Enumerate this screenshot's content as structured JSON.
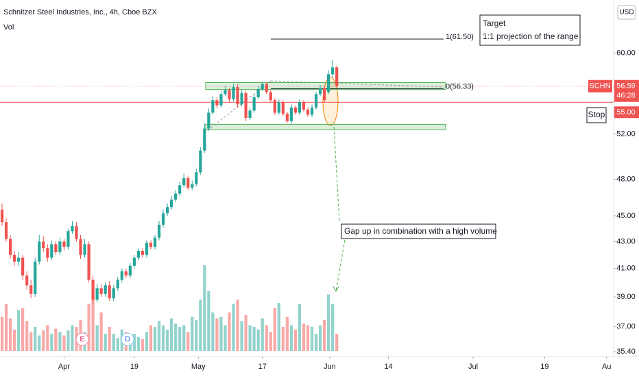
{
  "header": {
    "title": "Schnitzer Steel Industries, Inc., 4h, Cboe BZX",
    "volume_label": "Vol",
    "currency": "USD"
  },
  "chart_data": {
    "type": "candlestick",
    "log_scale": true,
    "up_color": "#26a69a",
    "down_color": "#ef5350",
    "open": [
      45.5,
      44.5,
      43.2,
      42.0,
      41.5,
      41.8,
      40.5,
      39.8,
      39.2,
      41.5,
      43.0,
      42.5,
      41.8,
      42.8,
      42.2,
      43.0,
      42.6,
      43.8,
      44.2,
      43.2,
      42.0,
      42.8,
      40.2,
      38.8,
      39.6,
      39.2,
      39.8,
      38.9,
      39.6,
      40.2,
      40.8,
      40.5,
      41.2,
      41.8,
      42.3,
      42.0,
      42.9,
      42.6,
      43.3,
      44.3,
      45.2,
      45.7,
      46.3,
      46.8,
      47.5,
      48.1,
      47.3,
      47.6,
      48.6,
      50.5,
      52.5,
      54.0,
      55.2,
      54.7,
      55.8,
      56.2,
      55.3,
      56.5,
      54.8,
      55.9,
      53.5,
      54.2,
      55.5,
      56.3,
      56.8,
      56.0,
      55.2,
      54.0,
      55.0,
      53.9,
      53.2,
      54.5,
      54.0,
      55.0,
      54.3,
      53.8,
      54.5,
      55.8,
      56.4,
      56.0,
      57.8,
      58.5
    ],
    "high": [
      46.0,
      44.8,
      43.5,
      42.3,
      42.2,
      42.0,
      40.8,
      40.2,
      41.8,
      43.5,
      43.4,
      42.8,
      43.1,
      43.0,
      43.3,
      43.2,
      44.0,
      44.6,
      44.5,
      43.5,
      43.2,
      43.0,
      40.5,
      39.9,
      39.9,
      40.0,
      40.1,
      39.8,
      40.4,
      41.0,
      41.0,
      41.4,
      42.0,
      42.5,
      42.5,
      43.1,
      43.1,
      43.5,
      44.6,
      45.5,
      46.0,
      46.6,
      47.1,
      47.8,
      48.5,
      48.3,
      47.9,
      48.9,
      50.8,
      53.0,
      54.4,
      55.6,
      55.5,
      56.1,
      56.6,
      56.4,
      56.8,
      56.8,
      56.2,
      56.1,
      54.5,
      55.8,
      56.6,
      57.0,
      57.0,
      56.2,
      55.4,
      55.3,
      55.2,
      54.1,
      54.8,
      54.7,
      55.3,
      55.2,
      54.5,
      54.8,
      56.0,
      56.7,
      56.6,
      58.2,
      59.3,
      58.7
    ],
    "low": [
      44.2,
      43.0,
      41.7,
      41.2,
      41.2,
      40.2,
      39.5,
      38.9,
      39.0,
      41.3,
      42.2,
      41.5,
      41.6,
      42.0,
      42.0,
      42.3,
      42.4,
      43.6,
      43.0,
      41.7,
      41.8,
      40.0,
      38.5,
      38.6,
      39.0,
      39.0,
      38.7,
      38.7,
      39.4,
      40.0,
      40.3,
      40.3,
      41.0,
      41.6,
      41.8,
      41.8,
      42.4,
      42.4,
      43.1,
      44.1,
      45.0,
      45.5,
      46.1,
      46.6,
      47.3,
      47.1,
      47.1,
      47.4,
      48.4,
      50.3,
      52.3,
      53.8,
      54.4,
      54.5,
      55.6,
      55.0,
      55.1,
      54.5,
      54.6,
      53.2,
      53.3,
      54.0,
      55.3,
      56.1,
      55.8,
      55.0,
      53.8,
      53.8,
      53.7,
      53.0,
      53.0,
      53.8,
      53.8,
      54.1,
      53.6,
      53.6,
      54.3,
      55.6,
      55.0,
      55.8,
      57.5,
      56.4
    ],
    "close": [
      44.5,
      43.2,
      42.0,
      41.5,
      41.8,
      40.5,
      39.8,
      39.2,
      41.5,
      43.0,
      42.5,
      41.8,
      42.8,
      42.2,
      43.0,
      42.6,
      43.8,
      44.2,
      43.2,
      42.0,
      42.8,
      40.2,
      38.8,
      39.6,
      39.2,
      39.8,
      38.9,
      39.6,
      40.2,
      40.8,
      40.5,
      41.2,
      41.8,
      42.3,
      42.0,
      42.9,
      42.6,
      43.3,
      44.3,
      45.2,
      45.7,
      46.3,
      46.8,
      47.5,
      48.1,
      47.3,
      47.6,
      48.6,
      50.5,
      52.5,
      54.0,
      55.2,
      54.7,
      55.8,
      56.2,
      55.3,
      56.5,
      54.8,
      55.9,
      53.5,
      54.2,
      55.5,
      56.3,
      56.8,
      56.0,
      55.2,
      54.0,
      55.0,
      53.9,
      53.2,
      54.5,
      54.0,
      55.0,
      54.3,
      53.8,
      54.5,
      55.8,
      56.4,
      55.2,
      57.8,
      58.5,
      56.59
    ],
    "volume": [
      40,
      55,
      38,
      25,
      48,
      50,
      35,
      22,
      28,
      18,
      24,
      30,
      20,
      26,
      22,
      18,
      24,
      30,
      28,
      36,
      22,
      55,
      60,
      30,
      45,
      20,
      28,
      20,
      15,
      25,
      22,
      18,
      20,
      16,
      14,
      22,
      30,
      28,
      35,
      30,
      25,
      38,
      32,
      28,
      30,
      22,
      40,
      36,
      60,
      100,
      70,
      45,
      38,
      40,
      30,
      45,
      55,
      60,
      35,
      42,
      30,
      28,
      25,
      38,
      30,
      22,
      50,
      56,
      28,
      40,
      30,
      25,
      55,
      32,
      30,
      28,
      20,
      30,
      36,
      66,
      55,
      20
    ],
    "vlim": [
      0,
      100
    ],
    "xlim": [
      -0.5,
      148
    ],
    "xticks": [
      {
        "value": 15,
        "label": "Apr"
      },
      {
        "value": 32,
        "label": "19"
      },
      {
        "value": 47.5,
        "label": "May"
      },
      {
        "value": 63,
        "label": "17"
      },
      {
        "value": 79.3,
        "label": "Jun"
      },
      {
        "value": 93.5,
        "label": "14"
      },
      {
        "value": 114,
        "label": "Jul"
      },
      {
        "value": 131.3,
        "label": "19"
      },
      {
        "value": 146.3,
        "label": "Au"
      }
    ],
    "ylim": [
      35.1,
      65.9
    ],
    "yticks": [
      {
        "value": 60,
        "label": "60.00"
      },
      {
        "value": 52,
        "label": "52.00"
      },
      {
        "value": 48,
        "label": "48.00"
      },
      {
        "value": 45,
        "label": "45.00"
      },
      {
        "value": 43,
        "label": "43.00"
      },
      {
        "value": 41,
        "label": "41.00"
      },
      {
        "value": 39,
        "label": "39.00"
      },
      {
        "value": 37,
        "label": "37.00"
      },
      {
        "value": 35.4,
        "label": "35.40"
      }
    ],
    "symbol": "SCHN",
    "last_price": 56.59,
    "countdown": "46:28",
    "stop_price": {
      "value": 55,
      "label": "55.00"
    },
    "fib_levels": [
      {
        "value": 61.5,
        "label": "1(61.50)"
      },
      {
        "value": 56.33,
        "label": "0(56.33)"
      }
    ],
    "range_boxes": [
      {
        "top": 56.95,
        "bottom": 56.25
      },
      {
        "top": 52.9,
        "bottom": 52.4
      }
    ],
    "annotations": {
      "target": [
        "Target",
        "1:1 projection of the range"
      ],
      "stop": "Stop",
      "gap": "Gap up in combination with a high volume"
    },
    "events": [
      "E",
      "D"
    ]
  }
}
